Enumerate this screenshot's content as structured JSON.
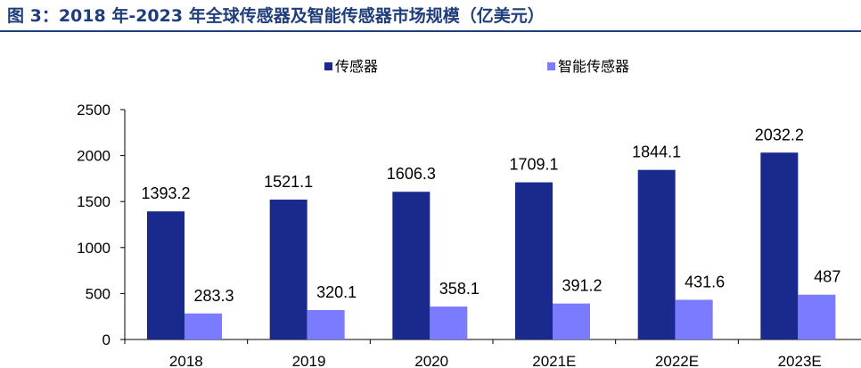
{
  "figure": {
    "title": "图 3：2018 年-2023 年全球传感器及智能传感器市场规模（亿美元）"
  },
  "chart_data": {
    "type": "bar",
    "title": "",
    "xlabel": "",
    "ylabel": "",
    "categories": [
      "2018",
      "2019",
      "2020",
      "2021E",
      "2022E",
      "2023E"
    ],
    "series": [
      {
        "name": "传感器",
        "color": "#1a2a8c",
        "values": [
          1393.2,
          1521.1,
          1606.3,
          1709.1,
          1844.1,
          2032.2
        ]
      },
      {
        "name": "智能传感器",
        "color": "#7b7bff",
        "values": [
          283.3,
          320.1,
          358.1,
          391.2,
          431.6,
          487
        ]
      }
    ],
    "ylim": [
      0,
      2500
    ],
    "yticks": [
      0,
      500,
      1000,
      1500,
      2000,
      2500
    ],
    "grid": false,
    "legend_position": "top"
  }
}
